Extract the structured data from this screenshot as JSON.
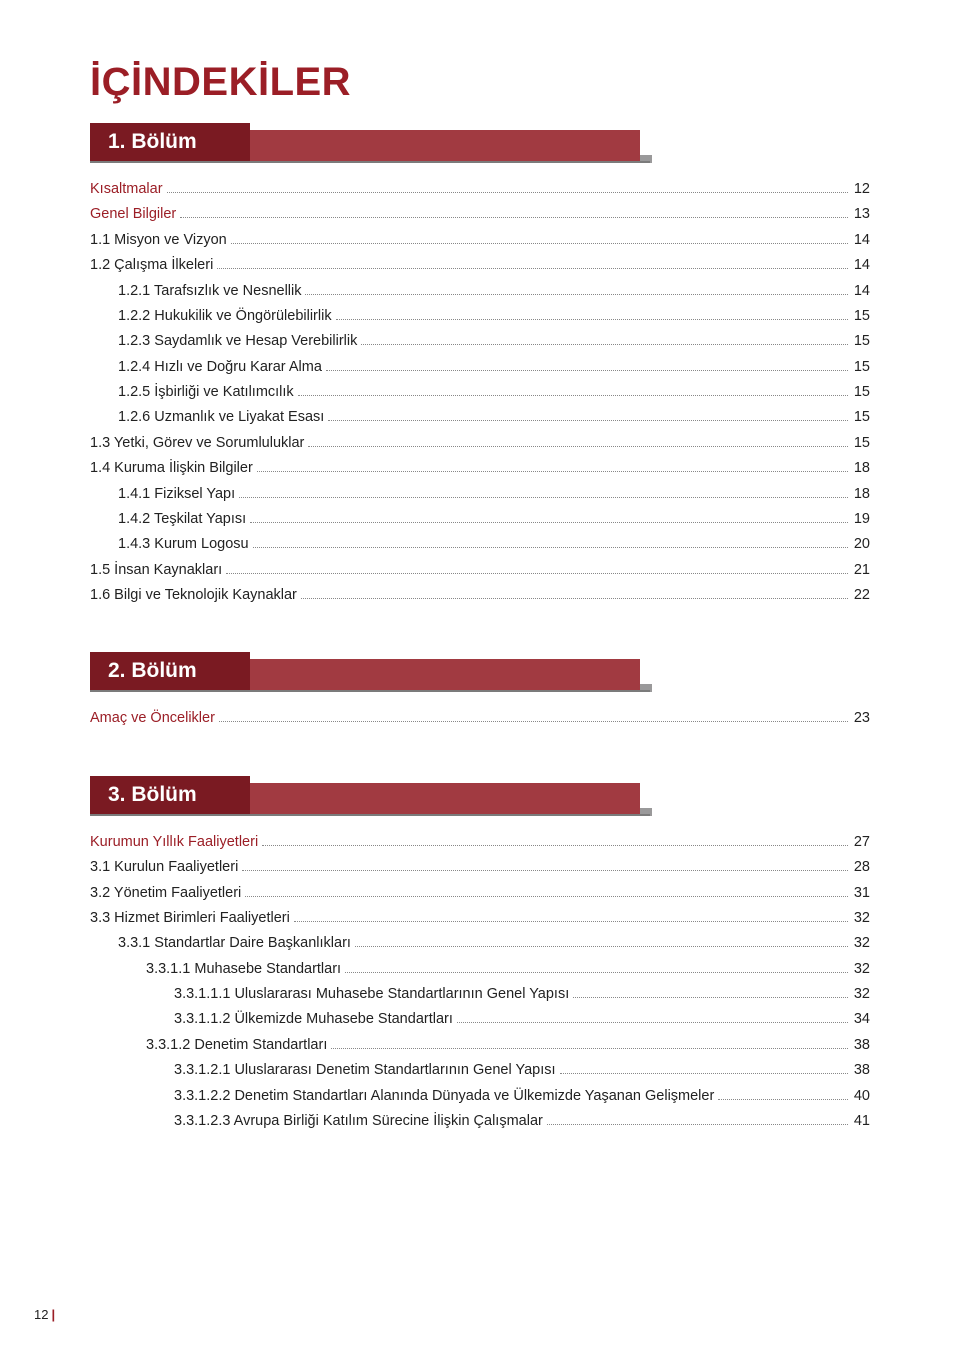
{
  "colors": {
    "accent": "#9b1e26",
    "tab_dark": "#7a1a22",
    "tab_light": "#a13a41",
    "rule": "#7b7b7b",
    "text": "#222222",
    "dot": "#888888",
    "background": "#ffffff"
  },
  "title": "İÇİNDEKİLER",
  "sections": [
    {
      "heading": "1. Bölüm",
      "entries": [
        {
          "label": "Kısaltmalar",
          "red": true,
          "indent": 0,
          "page": "12"
        },
        {
          "label": "Genel Bilgiler",
          "red": true,
          "indent": 0,
          "page": "13"
        },
        {
          "label": "1.1 Misyon ve Vizyon",
          "red": false,
          "indent": 0,
          "page": "14"
        },
        {
          "label": "1.2 Çalışma İlkeleri",
          "red": false,
          "indent": 0,
          "page": "14"
        },
        {
          "label": "1.2.1 Tarafsızlık ve Nesnellik",
          "red": false,
          "indent": 1,
          "page": "14"
        },
        {
          "label": "1.2.2 Hukukilik ve Öngörülebilirlik",
          "red": false,
          "indent": 1,
          "page": "15"
        },
        {
          "label": "1.2.3 Saydamlık ve Hesap Verebilirlik",
          "red": false,
          "indent": 1,
          "page": "15"
        },
        {
          "label": "1.2.4 Hızlı ve Doğru Karar Alma",
          "red": false,
          "indent": 1,
          "page": "15"
        },
        {
          "label": "1.2.5 İşbirliği ve Katılımcılık",
          "red": false,
          "indent": 1,
          "page": "15"
        },
        {
          "label": "1.2.6 Uzmanlık ve Liyakat Esası",
          "red": false,
          "indent": 1,
          "page": "15"
        },
        {
          "label": "1.3 Yetki, Görev ve Sorumluluklar",
          "red": false,
          "indent": 0,
          "page": "15"
        },
        {
          "label": "1.4 Kuruma İlişkin Bilgiler",
          "red": false,
          "indent": 0,
          "page": "18"
        },
        {
          "label": "1.4.1 Fiziksel Yapı",
          "red": false,
          "indent": 1,
          "page": "18"
        },
        {
          "label": "1.4.2 Teşkilat Yapısı",
          "red": false,
          "indent": 1,
          "page": "19"
        },
        {
          "label": "1.4.3 Kurum Logosu",
          "red": false,
          "indent": 1,
          "page": "20"
        },
        {
          "label": "1.5 İnsan Kaynakları",
          "red": false,
          "indent": 0,
          "page": "21"
        },
        {
          "label": "1.6 Bilgi ve Teknolojik Kaynaklar",
          "red": false,
          "indent": 0,
          "page": "22"
        }
      ]
    },
    {
      "heading": "2. Bölüm",
      "entries": [
        {
          "label": "Amaç ve Öncelikler",
          "red": true,
          "indent": 0,
          "page": "23"
        }
      ]
    },
    {
      "heading": "3. Bölüm",
      "entries": [
        {
          "label": "Kurumun Yıllık Faaliyetleri",
          "red": true,
          "indent": 0,
          "page": "27"
        },
        {
          "label": "3.1 Kurulun Faaliyetleri",
          "red": false,
          "indent": 0,
          "page": "28"
        },
        {
          "label": "3.2 Yönetim Faaliyetleri",
          "red": false,
          "indent": 0,
          "page": "31"
        },
        {
          "label": "3.3 Hizmet Birimleri Faaliyetleri",
          "red": false,
          "indent": 0,
          "page": "32"
        },
        {
          "label": "3.3.1 Standartlar Daire Başkanlıkları",
          "red": false,
          "indent": 1,
          "page": "32"
        },
        {
          "label": "3.3.1.1 Muhasebe Standartları",
          "red": false,
          "indent": 2,
          "page": "32"
        },
        {
          "label": "3.3.1.1.1 Uluslararası Muhasebe Standartlarının Genel Yapısı",
          "red": false,
          "indent": 3,
          "page": "32"
        },
        {
          "label": "3.3.1.1.2 Ülkemizde Muhasebe Standartları",
          "red": false,
          "indent": 3,
          "page": "34"
        },
        {
          "label": "3.3.1.2 Denetim Standartları",
          "red": false,
          "indent": 2,
          "page": "38"
        },
        {
          "label": "3.3.1.2.1 Uluslararası Denetim Standartlarının Genel Yapısı",
          "red": false,
          "indent": 3,
          "page": "38"
        },
        {
          "label": "3.3.1.2.2 Denetim Standartları Alanında Dünyada ve Ülkemizde Yaşanan Gelişmeler",
          "red": false,
          "indent": 3,
          "page": "40"
        },
        {
          "label": "3.3.1.2.3 Avrupa Birliği Katılım Sürecine İlişkin Çalışmalar",
          "red": false,
          "indent": 3,
          "page": "41"
        }
      ]
    }
  ],
  "footer_page_number": "12"
}
